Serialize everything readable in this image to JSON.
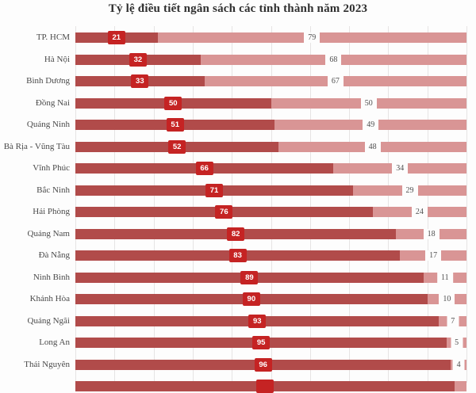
{
  "title": "Tỷ lệ điều tiết ngân sách các tỉnh thành năm 2023",
  "chart_data": {
    "type": "bar",
    "orientation": "horizontal",
    "stacked": true,
    "title": "Tỷ lệ điều tiết ngân sách các tỉnh thành năm 2023",
    "categories": [
      "TP. HCM",
      "Hà Nội",
      "Bình Dương",
      "Đồng Nai",
      "Quảng Ninh",
      "Bà Rịa - Vũng Tàu",
      "Vĩnh Phúc",
      "Bắc Ninh",
      "Hải Phòng",
      "Quảng Nam",
      "Đà Nẵng",
      "Ninh Bình",
      "Khánh Hòa",
      "Quảng Ngãi",
      "Long An",
      "Thái Nguyên"
    ],
    "series": [
      {
        "name": "dark-red-segment",
        "color": "#b14b4a",
        "values": [
          21,
          32,
          33,
          50,
          51,
          52,
          66,
          71,
          76,
          82,
          83,
          89,
          90,
          93,
          95,
          96
        ]
      },
      {
        "name": "light-pink-segment",
        "color": "#d99595",
        "values": [
          79,
          68,
          67,
          50,
          49,
          48,
          34,
          29,
          24,
          18,
          17,
          11,
          10,
          7,
          5,
          4
        ]
      }
    ],
    "xlabel": "",
    "ylabel": "",
    "xlim": [
      0,
      100
    ],
    "gridlines": {
      "visible": true,
      "interval": 10,
      "color": "#e6e4e4"
    },
    "legend": "none",
    "data_labels": {
      "dark_segment_style": "white bold number in red badge centered on dark segment",
      "light_segment_style": "gray number on white patch centered on light segment",
      "badge_color": "#c52323"
    },
    "cropped_bottom_row": {
      "visible": true,
      "value_label_visible": false,
      "dark_fraction_estimate": 0.97
    }
  },
  "layout_colors": {
    "background": "#fdfdfd",
    "title_text": "#2e2e2e",
    "category_text": "#4a4a4a",
    "value_text": "#4f4f4f"
  }
}
